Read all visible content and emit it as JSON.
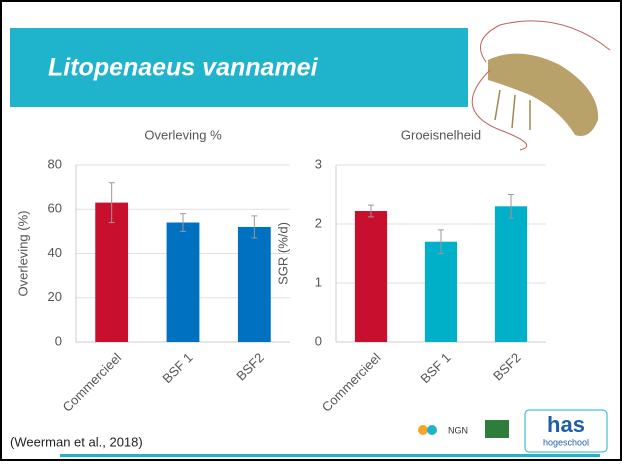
{
  "slide": {
    "title": "Litopenaeus vannamei",
    "citation": "(Weerman et al., 2018)",
    "logo_ngn": "NGN",
    "logo_has": "has",
    "logo_has_sub": "hogeschool"
  },
  "chart_data": [
    {
      "type": "bar",
      "title": "Overleving %",
      "y_label": "Overleving (%)",
      "categories": [
        "Commercieel",
        "BSF 1",
        "BSF2"
      ],
      "values": [
        63,
        54,
        52
      ],
      "errors": [
        9,
        4,
        5
      ],
      "colors": [
        "#c8102e",
        "#0070c0",
        "#0070c0"
      ],
      "ylim": [
        0,
        80
      ],
      "yticks": [
        0,
        20,
        40,
        60,
        80
      ],
      "grid": true
    },
    {
      "type": "bar",
      "title": "Groeisnelheid",
      "y_label": "SGR (%/d)",
      "categories": [
        "Commercieel",
        "BSF 1",
        "BSF2"
      ],
      "values": [
        2.22,
        1.7,
        2.3
      ],
      "errors": [
        0.1,
        0.2,
        0.2
      ],
      "colors": [
        "#c8102e",
        "#00b0c8",
        "#00b0c8"
      ],
      "ylim": [
        0,
        3
      ],
      "yticks": [
        0,
        1,
        2,
        3
      ],
      "grid": true
    }
  ]
}
